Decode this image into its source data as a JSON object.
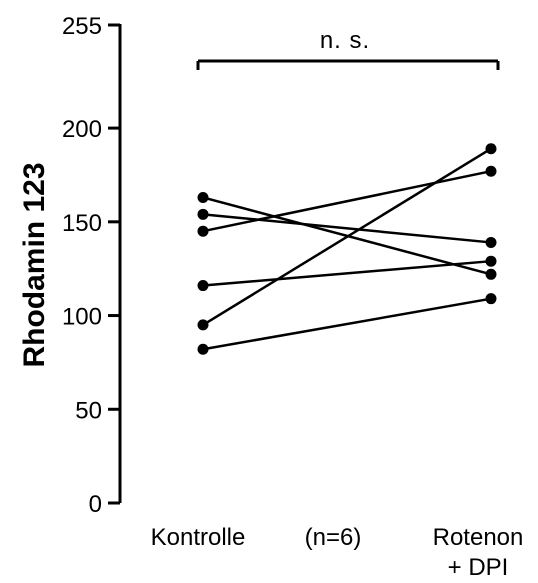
{
  "chart_data": {
    "type": "line",
    "ylabel": "Rhodamin 123",
    "ylim": [
      0,
      255
    ],
    "yticks": [
      0,
      50,
      100,
      150,
      200,
      255
    ],
    "ytick_labels": [
      "0",
      "50",
      "100",
      "150",
      "200",
      "255"
    ],
    "categories": [
      "Kontrolle",
      "Rotenon + DPI"
    ],
    "category_label_lines": [
      [
        "Kontrolle"
      ],
      [
        "Rotenon",
        "+ DPI"
      ]
    ],
    "middle_label": "(n=6)",
    "significance": "n. s.",
    "series": [
      {
        "values": [
          163,
          122
        ]
      },
      {
        "values": [
          154,
          139
        ]
      },
      {
        "values": [
          145,
          177
        ]
      },
      {
        "values": [
          116,
          129
        ]
      },
      {
        "values": [
          95,
          189
        ]
      },
      {
        "values": [
          82,
          109
        ]
      }
    ],
    "grid": false,
    "legend": "none"
  }
}
